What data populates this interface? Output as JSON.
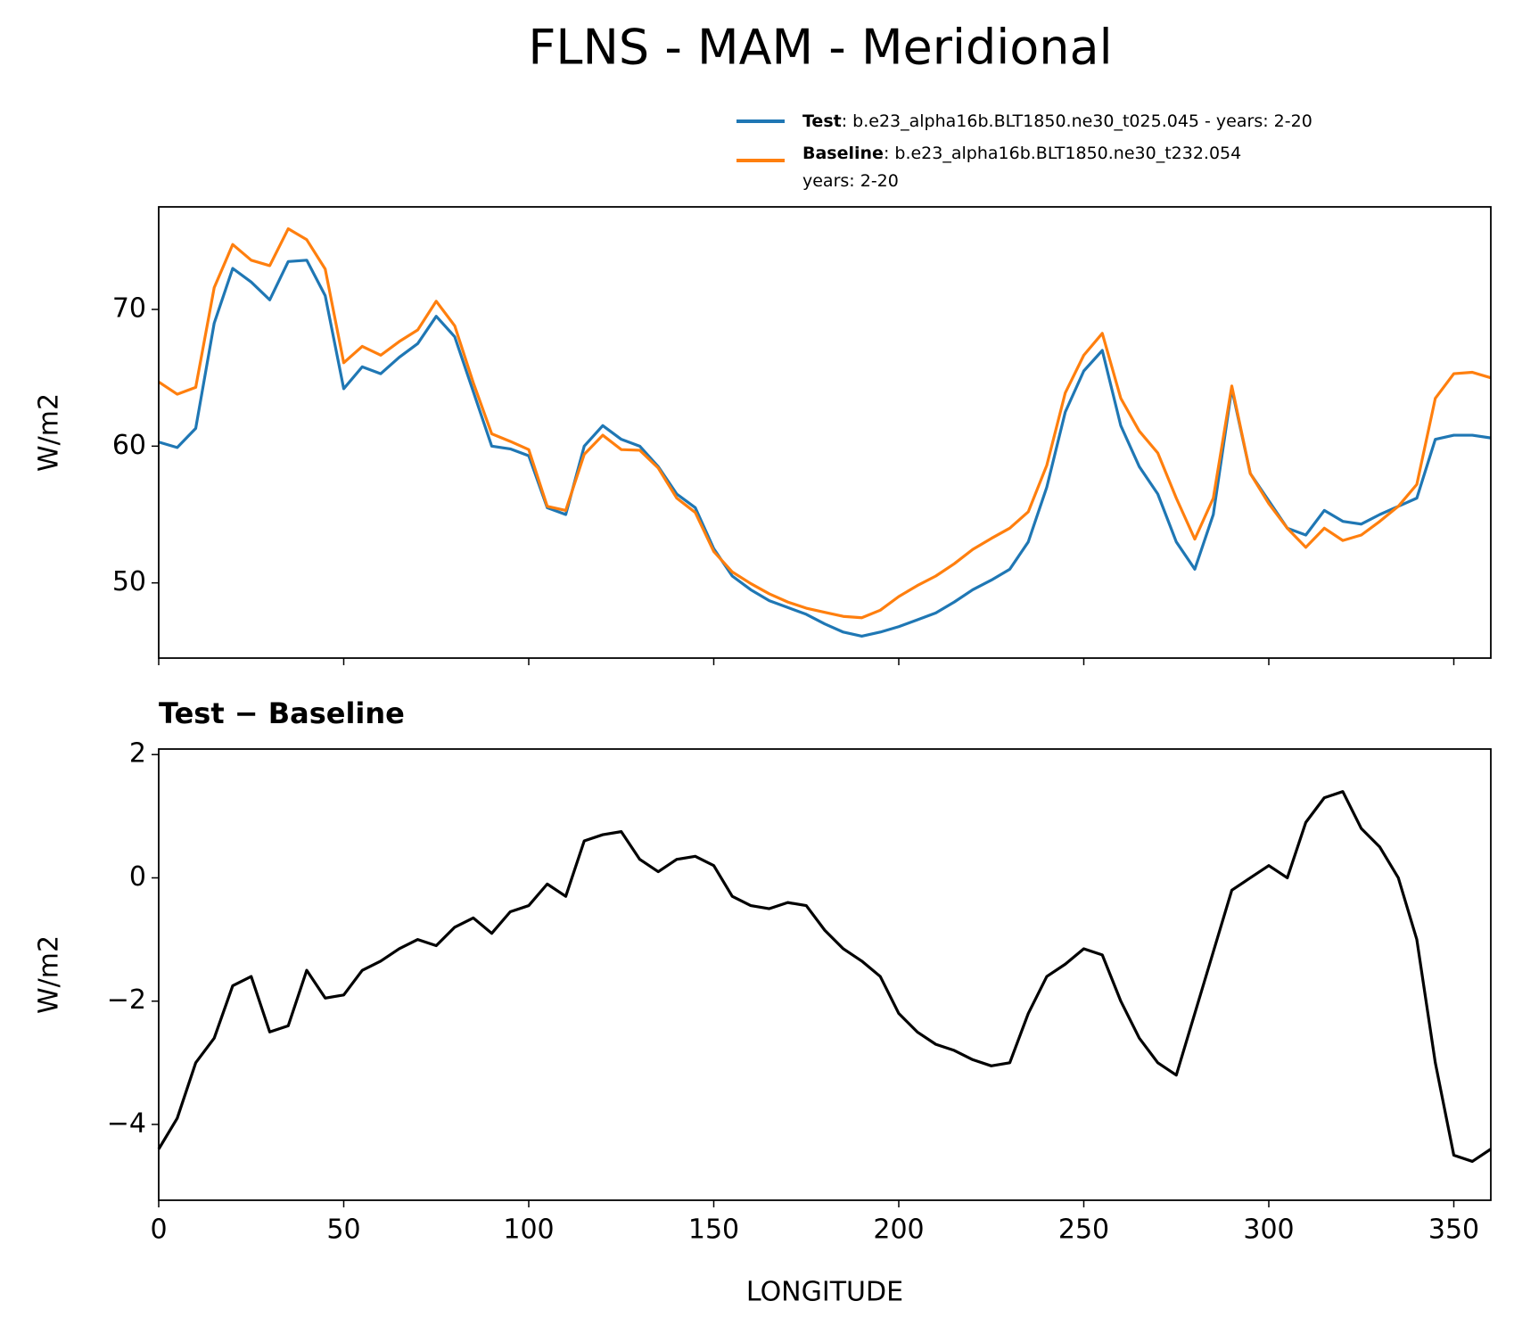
{
  "chart_data": [
    {
      "type": "line",
      "title": "FLNS - MAM - Meridional",
      "ylabel": "W/m2",
      "x": [
        0,
        5,
        10,
        15,
        20,
        25,
        30,
        35,
        40,
        45,
        50,
        55,
        60,
        65,
        70,
        75,
        80,
        85,
        90,
        95,
        100,
        105,
        110,
        115,
        120,
        125,
        130,
        135,
        140,
        145,
        150,
        155,
        160,
        165,
        170,
        175,
        180,
        185,
        190,
        195,
        200,
        205,
        210,
        215,
        220,
        225,
        230,
        235,
        240,
        245,
        250,
        255,
        260,
        265,
        270,
        275,
        280,
        285,
        290,
        295,
        300,
        305,
        310,
        315,
        320,
        325,
        330,
        335,
        340,
        345,
        350,
        355,
        360
      ],
      "series": [
        {
          "name": "Test",
          "label_lines": [
            ": b.e23_alpha16b.BLT1850.ne30_t025.045 - years: 2-20"
          ],
          "color": "#1f77b4",
          "values": [
            60.3,
            59.9,
            61.3,
            69,
            73,
            72,
            70.7,
            73.5,
            73.6,
            71,
            64.2,
            65.8,
            65.3,
            66.5,
            67.5,
            69.5,
            68,
            64,
            60,
            59.8,
            59.3,
            55.5,
            55,
            60,
            61.5,
            60.5,
            60,
            58.5,
            56.5,
            55.5,
            52.5,
            50.5,
            49.5,
            48.7,
            48.2,
            47.7,
            47,
            46.4,
            46.1,
            46.4,
            46.8,
            47.3,
            47.8,
            48.6,
            49.5,
            50.2,
            51,
            53,
            57,
            62.5,
            65.5,
            67,
            61.5,
            58.5,
            56.5,
            53,
            51,
            55,
            64.2,
            58,
            56,
            54,
            53.5,
            55.3,
            54.5,
            54.3,
            55,
            55.6,
            56.2,
            60.5,
            60.8,
            60.8,
            60.6
          ]
        },
        {
          "name": "Baseline",
          "label_lines": [
            ": b.e23_alpha16b.BLT1850.ne30_t232.054",
            "years: 2-20"
          ],
          "color": "#ff7f0e",
          "values": [
            64.7,
            63.8,
            64.3,
            71.6,
            74.75,
            73.6,
            73.2,
            75.9,
            75.1,
            72.95,
            66.1,
            67.3,
            66.65,
            67.65,
            68.5,
            70.6,
            68.8,
            64.65,
            60.9,
            60.35,
            59.75,
            55.6,
            55.3,
            59.4,
            60.8,
            59.75,
            59.7,
            58.4,
            56.2,
            55.15,
            52.3,
            50.8,
            49.95,
            49.2,
            48.6,
            48.15,
            47.85,
            47.55,
            47.45,
            48,
            49,
            49.8,
            50.5,
            51.4,
            52.45,
            53.25,
            54,
            55.2,
            58.6,
            63.9,
            66.65,
            68.25,
            63.5,
            61.1,
            59.5,
            56.2,
            53.2,
            56.2,
            64.4,
            58,
            55.8,
            54,
            52.6,
            54,
            53.1,
            53.5,
            54.5,
            55.6,
            57.2,
            63.5,
            65.3,
            65.4,
            65
          ]
        }
      ],
      "xlim": [
        0,
        360
      ],
      "xticks": [
        0,
        50,
        100,
        150,
        200,
        250,
        300,
        350
      ],
      "ylim": [
        44.5,
        77.5
      ],
      "yticks": [
        50,
        60,
        70
      ]
    },
    {
      "type": "line",
      "title": "Test − Baseline",
      "ylabel": "W/m2",
      "xlabel": "LONGITUDE",
      "x": [
        0,
        5,
        10,
        15,
        20,
        25,
        30,
        35,
        40,
        45,
        50,
        55,
        60,
        65,
        70,
        75,
        80,
        85,
        90,
        95,
        100,
        105,
        110,
        115,
        120,
        125,
        130,
        135,
        140,
        145,
        150,
        155,
        160,
        165,
        170,
        175,
        180,
        185,
        190,
        195,
        200,
        205,
        210,
        215,
        220,
        225,
        230,
        235,
        240,
        245,
        250,
        255,
        260,
        265,
        270,
        275,
        280,
        285,
        290,
        295,
        300,
        305,
        310,
        315,
        320,
        325,
        330,
        335,
        340,
        345,
        350,
        355,
        360
      ],
      "series": [
        {
          "color": "#000000",
          "values": [
            -4.4,
            -3.9,
            -3.0,
            -2.6,
            -1.75,
            -1.6,
            -2.5,
            -2.4,
            -1.5,
            -1.95,
            -1.9,
            -1.5,
            -1.35,
            -1.15,
            -1.0,
            -1.1,
            -0.8,
            -0.65,
            -0.9,
            -0.55,
            -0.45,
            -0.1,
            -0.3,
            0.6,
            0.7,
            0.75,
            0.3,
            0.1,
            0.3,
            0.35,
            0.2,
            -0.3,
            -0.45,
            -0.5,
            -0.4,
            -0.45,
            -0.85,
            -1.15,
            -1.35,
            -1.6,
            -2.2,
            -2.5,
            -2.7,
            -2.8,
            -2.95,
            -3.05,
            -3.0,
            -2.2,
            -1.6,
            -1.4,
            -1.15,
            -1.25,
            -2.0,
            -2.6,
            -3.0,
            -3.2,
            -2.2,
            -1.2,
            -0.2,
            0,
            0.2,
            0.0,
            0.9,
            1.3,
            1.4,
            0.8,
            0.5,
            0.0,
            -1.0,
            -3.0,
            -4.5,
            -4.6,
            -4.4
          ]
        }
      ],
      "xlim": [
        0,
        360
      ],
      "xticks": [
        0,
        50,
        100,
        150,
        200,
        250,
        300,
        350
      ],
      "ylim": [
        -5.23,
        2.09
      ],
      "yticks": [
        {
          "value": -4,
          "label": "−4"
        },
        {
          "value": -2,
          "label": "−2"
        },
        0,
        2
      ]
    }
  ]
}
